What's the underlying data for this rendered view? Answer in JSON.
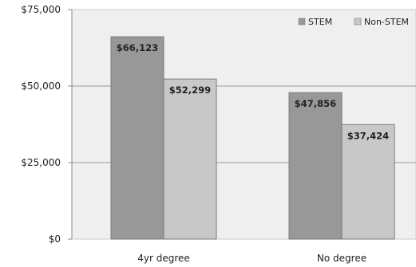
{
  "chart_data": {
    "type": "bar",
    "categories": [
      "4yr degree",
      "No degree"
    ],
    "series": [
      {
        "name": "STEM",
        "values": [
          66123,
          47856
        ],
        "labels": [
          "$66,123",
          "$47,856"
        ],
        "color": "#989898"
      },
      {
        "name": "Non-STEM",
        "values": [
          52299,
          37424
        ],
        "labels": [
          "$52,299",
          "$37,424"
        ],
        "color": "#c8c8c8"
      }
    ],
    "y_ticks": [
      {
        "value": 0,
        "label": "$0"
      },
      {
        "value": 25000,
        "label": "$25,000"
      },
      {
        "value": 50000,
        "label": "$50,000"
      },
      {
        "value": 75000,
        "label": "$75,000"
      }
    ],
    "ylim": [
      0,
      75000
    ],
    "grid": true,
    "legend_position": "top-right",
    "plot_background": "#efefef"
  }
}
